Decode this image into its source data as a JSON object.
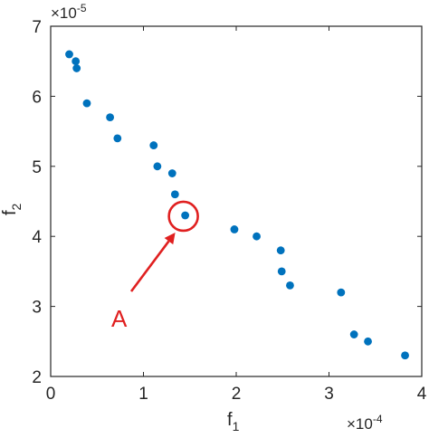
{
  "chart_data": {
    "type": "scatter",
    "title": "",
    "xlabel": "f",
    "xlabel_sub": "1",
    "ylabel": "f",
    "ylabel_sub": "2",
    "x_multiplier": "×10",
    "x_exponent": "-4",
    "y_multiplier": "×10",
    "y_exponent": "-5",
    "xlim": [
      0,
      4
    ],
    "ylim": [
      2,
      7
    ],
    "xticks": [
      "0",
      "1",
      "2",
      "3",
      "4"
    ],
    "yticks": [
      "2",
      "3",
      "4",
      "5",
      "6",
      "7"
    ],
    "grid": false,
    "series": [
      {
        "color": "#0072BD",
        "points": [
          {
            "x": 0.2,
            "y": 6.6
          },
          {
            "x": 0.27,
            "y": 6.5
          },
          {
            "x": 0.28,
            "y": 6.4
          },
          {
            "x": 0.39,
            "y": 5.9
          },
          {
            "x": 0.64,
            "y": 5.7
          },
          {
            "x": 0.72,
            "y": 5.4
          },
          {
            "x": 1.11,
            "y": 5.3
          },
          {
            "x": 1.15,
            "y": 5.0
          },
          {
            "x": 1.31,
            "y": 4.9
          },
          {
            "x": 1.34,
            "y": 4.6
          },
          {
            "x": 1.45,
            "y": 4.3
          },
          {
            "x": 1.98,
            "y": 4.1
          },
          {
            "x": 2.22,
            "y": 4.0
          },
          {
            "x": 2.48,
            "y": 3.8
          },
          {
            "x": 2.49,
            "y": 3.5
          },
          {
            "x": 2.58,
            "y": 3.3
          },
          {
            "x": 3.13,
            "y": 3.2
          },
          {
            "x": 3.27,
            "y": 2.6
          },
          {
            "x": 3.42,
            "y": 2.5
          },
          {
            "x": 3.82,
            "y": 2.3
          }
        ]
      }
    ],
    "annotation": {
      "label": "A",
      "color": "#E02020",
      "target": {
        "x": 1.45,
        "y": 4.3
      }
    }
  }
}
